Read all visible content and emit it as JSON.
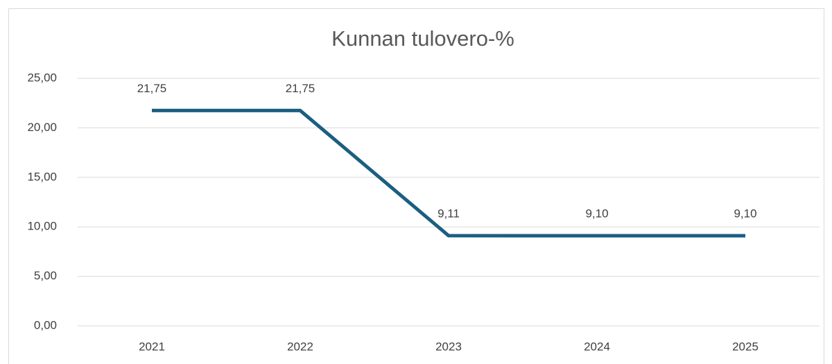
{
  "chart_data": {
    "type": "line",
    "title": "Kunnan tulovero-%",
    "categories": [
      "2021",
      "2022",
      "2023",
      "2024",
      "2025"
    ],
    "series": [
      {
        "name": "Kunnan tulovero-%",
        "color": "#1b5e80",
        "values": [
          21.75,
          21.75,
          9.11,
          9.1,
          9.1
        ],
        "value_labels": [
          "21,75",
          "21,75",
          "9,11",
          "9,10",
          "9,10"
        ]
      }
    ],
    "ylim": [
      0,
      25
    ],
    "yticks": [
      {
        "value": 0,
        "label": "0,00"
      },
      {
        "value": 5,
        "label": "5,00"
      },
      {
        "value": 10,
        "label": "10,00"
      },
      {
        "value": 15,
        "label": "15,00"
      },
      {
        "value": 20,
        "label": "20,00"
      },
      {
        "value": 25,
        "label": "25,00"
      }
    ],
    "grid": true
  }
}
